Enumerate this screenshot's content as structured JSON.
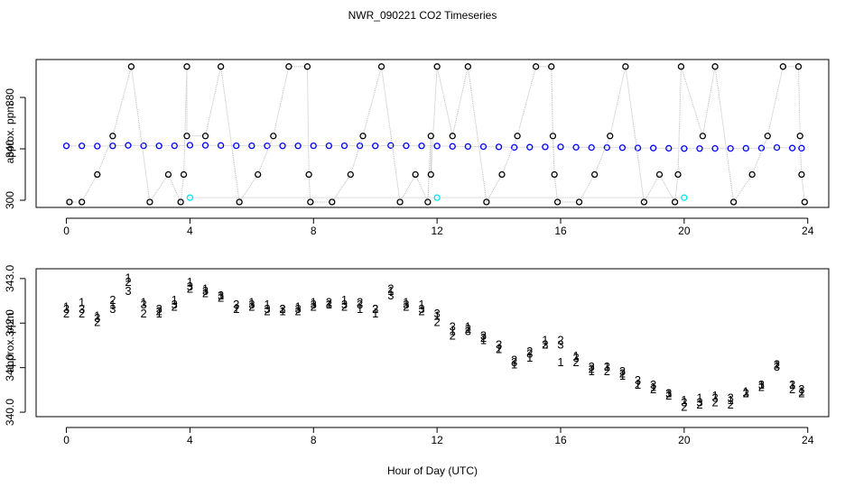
{
  "chart_data": [
    {
      "type": "scatter",
      "title": "NWR_090221  CO2 Timeseries",
      "ylabel": "approx. ppm",
      "xlim": [
        -0.98,
        24.68
      ],
      "ylim": [
        294.4,
        409.5
      ],
      "xticks": [
        0,
        4,
        8,
        12,
        16,
        20,
        24
      ],
      "yticks": [
        300,
        340,
        380
      ],
      "series": [
        {
          "color": "#0000ff",
          "marker": "circle",
          "x": [
            0,
            0.5,
            1,
            1.5,
            2,
            2.5,
            3,
            3.5,
            4,
            4.5,
            5,
            5.5,
            6,
            6.5,
            7,
            7.5,
            8,
            8.5,
            9,
            9.5,
            10,
            10.5,
            11,
            11.5,
            12,
            12.5,
            13,
            13.5,
            14,
            14.5,
            15,
            15.5,
            16,
            16.5,
            17,
            17.5,
            18,
            18.5,
            19,
            19.5,
            20,
            20.5,
            21,
            21.5,
            22,
            22.5,
            23,
            23.5,
            23.8
          ],
          "values": [
            342.3,
            342.3,
            342.1,
            342.3,
            342.7,
            342.4,
            342.3,
            342.4,
            342.8,
            342.7,
            342.6,
            342.4,
            342.4,
            342.3,
            342.3,
            342.3,
            342.4,
            342.4,
            342.4,
            342.4,
            342.3,
            342.6,
            342.4,
            342.3,
            342.2,
            341.9,
            341.8,
            341.7,
            341.5,
            341.1,
            341.3,
            341.5,
            341.5,
            341.2,
            341.0,
            341.0,
            340.9,
            340.7,
            340.6,
            340.4,
            340.2,
            340.2,
            340.3,
            340.3,
            340.4,
            340.6,
            341.0,
            340.6,
            340.5
          ]
        },
        {
          "color": "#000000",
          "marker": "circle",
          "x": [
            0.1,
            0.5,
            1.0,
            1.5,
            2.1,
            2.7,
            3.3,
            3.7,
            3.8,
            3.9,
            3.9,
            4.5,
            5.0,
            5.6,
            6.2,
            6.7,
            7.2,
            7.8,
            7.85,
            7.9,
            8.6,
            9.2,
            9.6,
            10.2,
            10.8,
            11.3,
            11.7,
            11.8,
            11.8,
            12.0,
            12.5,
            13.0,
            13.6,
            14.1,
            14.6,
            15.2,
            15.7,
            15.75,
            15.8,
            15.9,
            16.6,
            17.1,
            17.6,
            18.1,
            18.7,
            19.2,
            19.7,
            19.8,
            19.9,
            20.6,
            21.0,
            21.6,
            22.2,
            22.7,
            23.2,
            23.7,
            23.75,
            23.8,
            23.9
          ],
          "values": [
            298.6,
            298.6,
            320,
            350,
            404,
            298.6,
            320,
            298.6,
            320,
            404,
            350,
            350,
            404,
            298.6,
            320,
            350,
            404,
            404,
            320,
            298.6,
            298.6,
            320,
            350,
            404,
            298.6,
            320,
            298.6,
            350,
            320,
            404,
            350,
            404,
            298.6,
            320,
            350,
            404,
            404,
            350,
            320,
            298.6,
            298.6,
            320,
            350,
            404,
            298.6,
            320,
            298.6,
            320,
            404,
            350,
            404,
            298.6,
            320,
            350,
            404,
            404,
            350,
            320,
            298.6
          ]
        },
        {
          "color": "#00e5ee",
          "marker": "circle",
          "x": [
            4.0,
            12.0,
            20.0
          ],
          "values": [
            302,
            302,
            302
          ]
        }
      ]
    },
    {
      "type": "scatter",
      "ylabel": "approx. ppm",
      "xlabel": "Hour of Day (UTC)",
      "xlim": [
        -0.98,
        24.68
      ],
      "ylim": [
        339.9,
        343.22
      ],
      "xticks": [
        0,
        4,
        8,
        12,
        16,
        20,
        24
      ],
      "yticks": [
        {
          "value": 340,
          "label": "340.0"
        },
        {
          "value": 341,
          "label": "341.0"
        },
        {
          "value": 342,
          "label": "342.0"
        },
        {
          "value": 343,
          "label": "343.0"
        }
      ],
      "series": [
        {
          "color": "#ff0000",
          "marker": "1",
          "x": [
            0,
            0.5,
            1,
            1.5,
            2,
            2.5,
            3,
            3.5,
            4,
            4.5,
            5,
            5.5,
            6,
            6.5,
            7,
            7.5,
            8,
            8.5,
            9,
            9.5,
            10,
            10.5,
            11,
            11.5,
            12,
            12.5,
            13,
            13.5,
            14,
            14.5,
            15,
            15.5,
            16,
            16.5,
            17,
            17.5,
            18,
            18.5,
            19,
            19.5,
            20,
            20.5,
            21,
            21.5,
            22,
            22.5,
            23,
            23.5,
            23.8
          ],
          "values": [
            342.35,
            342.45,
            342.15,
            342.4,
            343.0,
            342.45,
            342.2,
            342.5,
            342.9,
            342.75,
            342.6,
            342.3,
            342.45,
            342.4,
            342.25,
            342.35,
            342.45,
            342.4,
            342.5,
            342.3,
            342.2,
            342.7,
            342.45,
            342.4,
            342.15,
            341.8,
            341.9,
            341.6,
            341.4,
            341.05,
            341.2,
            341.6,
            341.1,
            341.25,
            340.9,
            341.0,
            340.8,
            340.6,
            340.55,
            340.4,
            340.25,
            340.3,
            340.35,
            340.25,
            340.45,
            340.6,
            341.05,
            340.6,
            340.45
          ]
        },
        {
          "color": "#00cd00",
          "marker": "2",
          "x": [
            0,
            0.5,
            1,
            1.5,
            2,
            2.5,
            3,
            3.5,
            4,
            4.5,
            5,
            5.5,
            6,
            6.5,
            7,
            7.5,
            8,
            8.5,
            9,
            9.5,
            10,
            10.5,
            11,
            11.5,
            12,
            12.5,
            13,
            13.5,
            14,
            14.5,
            15,
            15.5,
            16,
            16.5,
            17,
            17.5,
            18,
            18.5,
            19,
            19.5,
            20,
            20.5,
            21,
            21.5,
            22,
            22.5,
            23,
            23.5,
            23.8
          ],
          "values": [
            342.2,
            342.2,
            342.0,
            342.5,
            342.9,
            342.2,
            342.25,
            342.35,
            342.75,
            342.65,
            342.55,
            342.3,
            342.35,
            342.25,
            342.3,
            342.25,
            342.35,
            342.45,
            342.35,
            342.45,
            342.3,
            342.75,
            342.35,
            342.25,
            342.0,
            341.7,
            341.85,
            341.65,
            341.4,
            341.15,
            341.35,
            341.5,
            341.6,
            341.1,
            340.95,
            340.9,
            340.85,
            340.6,
            340.5,
            340.35,
            340.1,
            340.15,
            340.2,
            340.15,
            340.4,
            340.55,
            341.05,
            340.5,
            340.4
          ]
        },
        {
          "color": "#0000ff",
          "marker": "3",
          "x": [
            0,
            0.5,
            1,
            1.5,
            2,
            2.5,
            3,
            3.5,
            4,
            4.5,
            5,
            5.5,
            6,
            6.5,
            7,
            7.5,
            8,
            8.5,
            9,
            9.5,
            10,
            10.5,
            11,
            11.5,
            12,
            12.5,
            13,
            13.5,
            14,
            14.5,
            15,
            15.5,
            16,
            16.5,
            17,
            17.5,
            18,
            18.5,
            19,
            19.5,
            20,
            20.5,
            21,
            21.5,
            22,
            22.5,
            23,
            23.5,
            23.8
          ],
          "values": [
            342.3,
            342.3,
            342.1,
            342.3,
            342.7,
            342.4,
            342.3,
            342.4,
            342.8,
            342.7,
            342.6,
            342.4,
            342.4,
            342.3,
            342.3,
            342.3,
            342.4,
            342.4,
            342.4,
            342.4,
            342.3,
            342.6,
            342.4,
            342.3,
            342.2,
            341.9,
            341.8,
            341.7,
            341.5,
            341.1,
            341.3,
            341.5,
            341.5,
            341.2,
            341.0,
            341.0,
            340.9,
            340.7,
            340.6,
            340.4,
            340.2,
            340.2,
            340.3,
            340.3,
            340.4,
            340.6,
            341.0,
            340.6,
            340.5
          ]
        }
      ]
    }
  ]
}
